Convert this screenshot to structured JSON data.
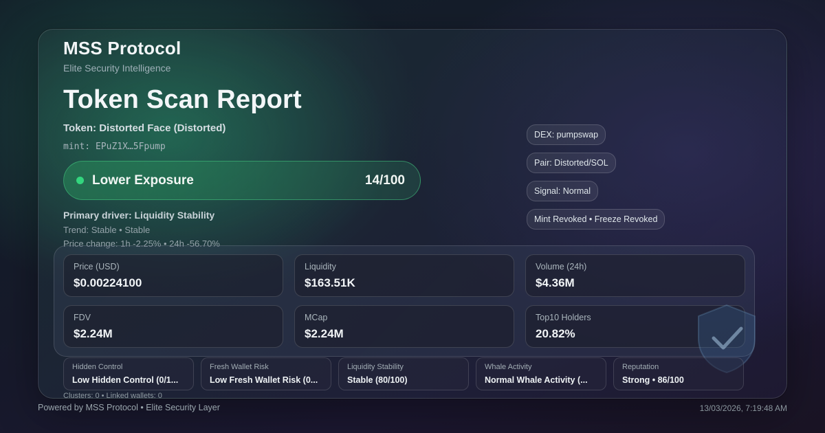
{
  "brand": {
    "name": "MSS Protocol",
    "tagline": "Elite Security Intelligence"
  },
  "report": {
    "title": "Token Scan Report",
    "token": "Token: Distorted Face (Distorted)",
    "mint": "mint: EPuZ1X…5Fpump"
  },
  "exposure": {
    "label": "Lower Exposure",
    "score": "14/100",
    "accent": "#33d67e"
  },
  "driver": {
    "primary": "Primary driver: Liquidity Stability",
    "trend": "Trend: Stable • Stable",
    "price_change": "Price change: 1h -2.25% • 24h -56.70%"
  },
  "tags": [
    "DEX: pumpswap",
    "Pair: Distorted/SOL",
    "Signal: Normal",
    "Mint Revoked • Freeze Revoked"
  ],
  "metrics": [
    {
      "label": "Price (USD)",
      "value": "$0.00224100"
    },
    {
      "label": "Liquidity",
      "value": "$163.51K"
    },
    {
      "label": "Volume (24h)",
      "value": "$4.36M"
    },
    {
      "label": "FDV",
      "value": "$2.24M"
    },
    {
      "label": "MCap",
      "value": "$2.24M"
    },
    {
      "label": "Top10 Holders",
      "value": "20.82%"
    }
  ],
  "risk_pills": [
    {
      "label": "Hidden Control",
      "value": "Low Hidden Control (0/1..."
    },
    {
      "label": "Fresh Wallet Risk",
      "value": "Low Fresh Wallet Risk (0..."
    },
    {
      "label": "Liquidity Stability",
      "value": "Stable (80/100)"
    },
    {
      "label": "Whale Activity",
      "value": "Normal Whale Activity (..."
    },
    {
      "label": "Reputation",
      "value": "Strong • 86/100"
    }
  ],
  "clusters": "Clusters: 0 • Linked wallets: 0",
  "footer": {
    "powered_by": "Powered by MSS Protocol • Elite Security Layer",
    "timestamp": "13/03/2026, 7:19:48 AM"
  },
  "icons": {
    "shield": "shield-check-icon",
    "status_dot": "status-dot-icon"
  }
}
